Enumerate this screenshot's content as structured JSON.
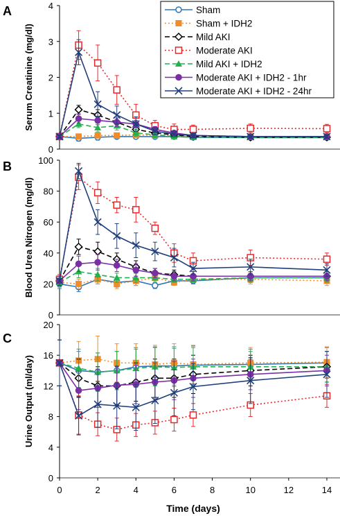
{
  "x_label": "Time (days)",
  "x_ticks": [
    0,
    2,
    4,
    6,
    8,
    10,
    12,
    14
  ],
  "x_range": [
    0,
    14
  ],
  "legend": [
    {
      "label": "Sham",
      "color": "#2E75B6",
      "marker": "circle-open",
      "dash": "solid"
    },
    {
      "label": "Sham + IDH2",
      "color": "#F28C28",
      "marker": "square-filled",
      "dash": "dotted"
    },
    {
      "label": "Mild AKI",
      "color": "#000000",
      "marker": "diamond-open",
      "dash": "dashed"
    },
    {
      "label": "Moderate AKI",
      "color": "#E8262A",
      "marker": "square-open",
      "dash": "dotted"
    },
    {
      "label": "Mild AKI + IDH2",
      "color": "#22B14C",
      "marker": "triangle-filled",
      "dash": "dashed"
    },
    {
      "label": "Moderate AKI + IDH2 - 1hr",
      "color": "#7B2FA6",
      "marker": "circle-filled",
      "dash": "solid"
    },
    {
      "label": "Moderate AKI + IDH2 - 24hr",
      "color": "#1F3E7A",
      "marker": "x",
      "dash": "solid"
    }
  ],
  "chart_data": [
    {
      "type": "line",
      "panel": "A",
      "ylabel": "Serum Creatinine (mg/dl)",
      "ylim": [
        0,
        4
      ],
      "y_ticks": [
        0,
        1,
        2,
        3,
        4
      ],
      "x": [
        0,
        1,
        2,
        3,
        4,
        5,
        6,
        7,
        10,
        14
      ],
      "series": [
        {
          "name": "Sham",
          "values": [
            0.35,
            0.3,
            0.33,
            0.35,
            0.35,
            0.35,
            0.35,
            0.33,
            0.32,
            0.32
          ],
          "err": [
            0.05,
            0.08,
            0.08,
            0.06,
            0.06,
            0.05,
            0.05,
            0.05,
            0.05,
            0.05
          ]
        },
        {
          "name": "Sham + IDH2",
          "values": [
            0.35,
            0.35,
            0.38,
            0.38,
            0.4,
            0.38,
            0.38,
            0.35,
            0.35,
            0.35
          ],
          "err": [
            0.05,
            0.06,
            0.06,
            0.06,
            0.06,
            0.05,
            0.05,
            0.05,
            0.05,
            0.05
          ]
        },
        {
          "name": "Mild AKI",
          "values": [
            0.35,
            1.1,
            0.95,
            0.75,
            0.55,
            0.45,
            0.4,
            0.35,
            0.33,
            0.33
          ],
          "err": [
            0.05,
            0.12,
            0.15,
            0.12,
            0.1,
            0.08,
            0.06,
            0.05,
            0.05,
            0.05
          ]
        },
        {
          "name": "Moderate AKI",
          "values": [
            0.35,
            2.9,
            2.4,
            1.65,
            0.95,
            0.65,
            0.55,
            0.55,
            0.58,
            0.57
          ],
          "err": [
            0.05,
            0.4,
            0.5,
            0.4,
            0.3,
            0.15,
            0.15,
            0.12,
            0.12,
            0.12
          ]
        },
        {
          "name": "Mild AKI + IDH2",
          "values": [
            0.35,
            0.7,
            0.6,
            0.65,
            0.45,
            0.4,
            0.35,
            0.33,
            0.33,
            0.33
          ],
          "err": [
            0.05,
            0.1,
            0.12,
            0.12,
            0.1,
            0.08,
            0.06,
            0.05,
            0.05,
            0.05
          ]
        },
        {
          "name": "Moderate AKI + IDH2 - 1hr",
          "values": [
            0.35,
            0.85,
            0.8,
            0.75,
            0.7,
            0.55,
            0.45,
            0.38,
            0.35,
            0.35
          ],
          "err": [
            0.05,
            0.12,
            0.12,
            0.12,
            0.1,
            0.08,
            0.06,
            0.05,
            0.05,
            0.05
          ]
        },
        {
          "name": "Moderate AKI + IDH2 - 24hr",
          "values": [
            0.35,
            2.7,
            1.25,
            0.95,
            0.7,
            0.5,
            0.42,
            0.38,
            0.35,
            0.35
          ],
          "err": [
            0.05,
            0.35,
            0.35,
            0.25,
            0.2,
            0.1,
            0.08,
            0.06,
            0.05,
            0.05
          ]
        }
      ]
    },
    {
      "type": "line",
      "panel": "B",
      "ylabel": "Blood Urea Nitrogen (mg/dl)",
      "ylim": [
        0,
        100
      ],
      "y_ticks": [
        0,
        20,
        40,
        60,
        80,
        100
      ],
      "x": [
        0,
        1,
        2,
        3,
        4,
        5,
        6,
        7,
        10,
        14
      ],
      "series": [
        {
          "name": "Sham",
          "values": [
            20,
            18,
            23,
            21,
            22,
            19,
            22,
            22,
            24,
            24
          ],
          "err": [
            3,
            3,
            3,
            3,
            3,
            2,
            2,
            2,
            3,
            3
          ]
        },
        {
          "name": "Sham + IDH2",
          "values": [
            21,
            20,
            23,
            20,
            22,
            24,
            21,
            23,
            23,
            22
          ],
          "err": [
            3,
            3,
            3,
            3,
            3,
            2,
            2,
            2,
            3,
            3
          ]
        },
        {
          "name": "Mild AKI",
          "values": [
            22,
            44,
            41,
            36,
            31,
            27,
            26,
            25,
            25,
            25
          ],
          "err": [
            3,
            5,
            6,
            4,
            4,
            3,
            3,
            3,
            3,
            3
          ]
        },
        {
          "name": "Moderate AKI",
          "values": [
            23,
            89,
            79,
            71,
            68,
            56,
            40,
            35,
            37,
            36
          ],
          "err": [
            3,
            8,
            7,
            5,
            8,
            4,
            6,
            5,
            5,
            4
          ]
        },
        {
          "name": "Mild AKI + IDH2",
          "values": [
            21,
            28,
            26,
            24,
            24,
            24,
            23,
            23,
            24,
            24
          ],
          "err": [
            3,
            4,
            4,
            3,
            3,
            3,
            2,
            2,
            3,
            3
          ]
        },
        {
          "name": "Moderate AKI + IDH2 - 1hr",
          "values": [
            22,
            33,
            34,
            32,
            29,
            27,
            25,
            25,
            25,
            25
          ],
          "err": [
            3,
            5,
            5,
            4,
            4,
            3,
            3,
            3,
            3,
            3
          ]
        },
        {
          "name": "Moderate AKI + IDH2 - 24hr",
          "values": [
            22,
            93,
            60,
            51,
            45,
            41,
            37,
            30,
            31,
            29
          ],
          "err": [
            3,
            5,
            8,
            8,
            8,
            6,
            6,
            4,
            5,
            4
          ]
        }
      ]
    },
    {
      "type": "line",
      "panel": "C",
      "ylabel": "Urine Output (ml/day)",
      "ylim": [
        0,
        20
      ],
      "y_ticks": [
        0,
        4,
        8,
        12,
        16,
        20
      ],
      "x": [
        0,
        1,
        2,
        3,
        4,
        5,
        6,
        7,
        10,
        14
      ],
      "series": [
        {
          "name": "Sham",
          "values": [
            15,
            14,
            13.8,
            14,
            14.5,
            14.6,
            14.6,
            14.7,
            14.8,
            15
          ],
          "err": [
            3,
            2.5,
            2.5,
            2.5,
            2.5,
            2.5,
            2.5,
            2.5,
            2,
            2
          ]
        },
        {
          "name": "Sham + IDH2",
          "values": [
            15,
            15.3,
            15.5,
            15,
            15,
            14.8,
            15,
            14.8,
            15,
            15.1
          ],
          "err": [
            3,
            2.5,
            3,
            2.5,
            2.5,
            2.5,
            2.5,
            2.5,
            2,
            2
          ]
        },
        {
          "name": "Mild AKI",
          "values": [
            15,
            13,
            12,
            12,
            12.5,
            13,
            13,
            13.5,
            14,
            14.5
          ],
          "err": [
            3,
            2.5,
            2.5,
            2.5,
            2.5,
            2.5,
            2.5,
            2.5,
            2,
            2
          ]
        },
        {
          "name": "Moderate AKI",
          "values": [
            15,
            8.2,
            7,
            6.3,
            6.9,
            7.2,
            7.6,
            8.2,
            9.5,
            10.7
          ],
          "err": [
            3,
            2.5,
            1.5,
            1.5,
            1.5,
            1.5,
            1.5,
            1.5,
            1.5,
            1.5
          ]
        },
        {
          "name": "Mild AKI + IDH2",
          "values": [
            15,
            14.3,
            13.8,
            14,
            14.3,
            14.5,
            14.4,
            14.5,
            14.5,
            14.5
          ],
          "err": [
            3,
            2.5,
            2.5,
            2.5,
            2.5,
            2.5,
            2.5,
            2.5,
            2,
            2
          ]
        },
        {
          "name": "Moderate AKI + IDH2 - 1hr",
          "values": [
            15,
            11.4,
            11.7,
            12.1,
            12.2,
            12.5,
            12.7,
            13,
            13.5,
            14
          ],
          "err": [
            3,
            2.5,
            2.5,
            2.5,
            2.5,
            2.5,
            2.5,
            2.5,
            2,
            2
          ]
        },
        {
          "name": "Moderate AKI + IDH2 - 24hr",
          "values": [
            15,
            8.1,
            9.6,
            9.4,
            9.2,
            10.1,
            11.1,
            11.9,
            12.7,
            13.5
          ],
          "err": [
            3,
            2.5,
            3,
            3,
            3,
            3,
            3,
            3,
            3,
            3
          ]
        }
      ]
    }
  ]
}
